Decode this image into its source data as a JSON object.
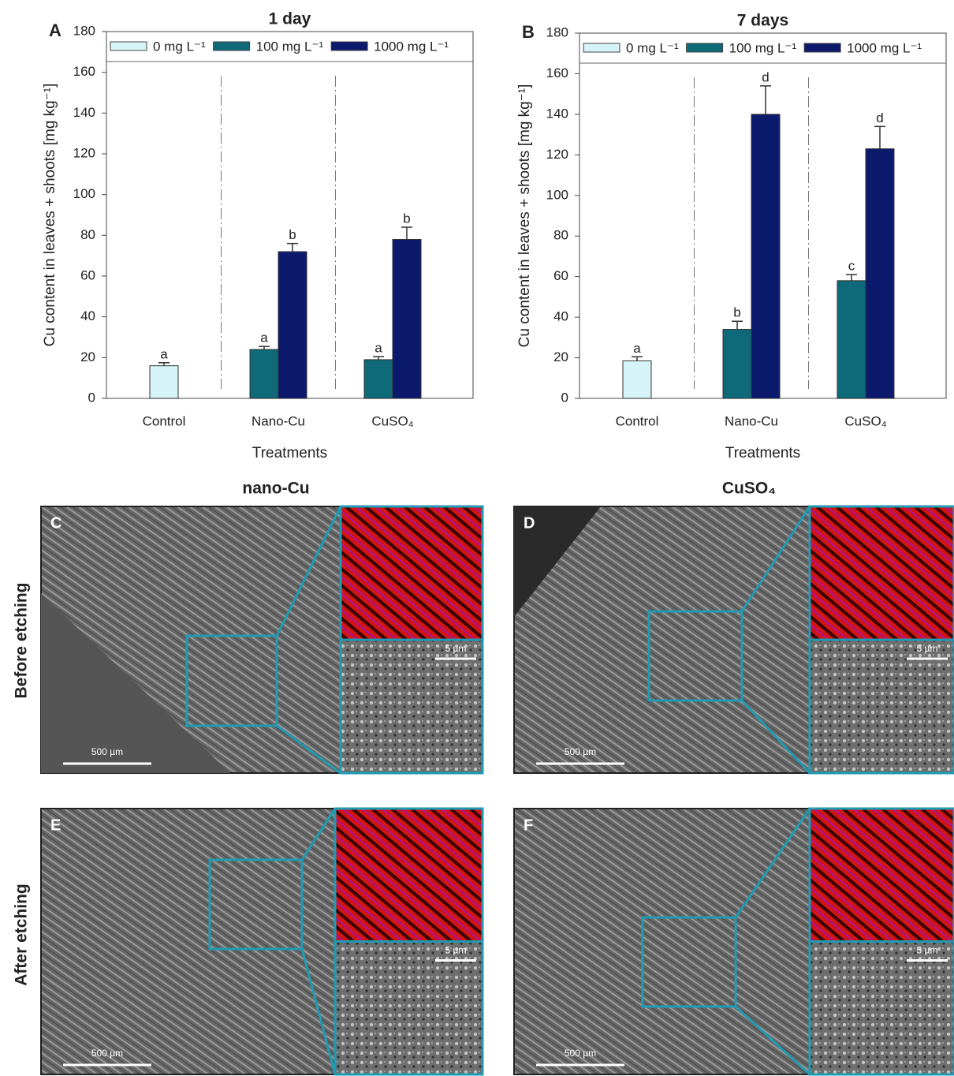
{
  "chart_data": [
    {
      "type": "bar",
      "panel": "A",
      "title": "1 day",
      "y_label": "Cu content in leaves + shoots [mg kg⁻¹]",
      "x_label": "Treatments",
      "categories": [
        "Control",
        "Nano-Cu",
        "CuSO₄"
      ],
      "series": [
        {
          "name": "0 mg L⁻¹",
          "color": "#d6f3f8",
          "values": [
            16,
            null,
            null
          ],
          "errors": [
            1.5,
            null,
            null
          ],
          "significance": [
            "a",
            null,
            null
          ]
        },
        {
          "name": "100 mg L⁻¹",
          "color": "#0e6a79",
          "values": [
            null,
            24,
            19
          ],
          "errors": [
            null,
            1.5,
            1.5
          ],
          "significance": [
            null,
            "a",
            "a"
          ]
        },
        {
          "name": "1000 mg L⁻¹",
          "color": "#0b1a6c",
          "values": [
            null,
            72,
            78
          ],
          "errors": [
            null,
            4,
            6
          ],
          "significance": [
            null,
            "b",
            "b"
          ]
        }
      ],
      "ylim": [
        0,
        180
      ],
      "yticks": [
        0,
        20,
        40,
        60,
        80,
        100,
        120,
        140,
        160,
        180
      ],
      "legend": "top"
    },
    {
      "type": "bar",
      "panel": "B",
      "title": "7 days",
      "y_label": "Cu content in leaves + shoots [mg kg⁻¹]",
      "x_label": "Treatments",
      "categories": [
        "Control",
        "Nano-Cu",
        "CuSO₄"
      ],
      "series": [
        {
          "name": "0 mg L⁻¹",
          "color": "#d6f3f8",
          "values": [
            18.5,
            null,
            null
          ],
          "errors": [
            2,
            null,
            null
          ],
          "significance": [
            "a",
            null,
            null
          ]
        },
        {
          "name": "100 mg L⁻¹",
          "color": "#0e6a79",
          "values": [
            null,
            34,
            58
          ],
          "errors": [
            null,
            4,
            3
          ],
          "significance": [
            null,
            "b",
            "c"
          ]
        },
        {
          "name": "1000 mg L⁻¹",
          "color": "#0b1a6c",
          "values": [
            null,
            140,
            123
          ],
          "errors": [
            null,
            14,
            11
          ],
          "significance": [
            null,
            "d",
            "d"
          ]
        }
      ],
      "ylim": [
        0,
        180
      ],
      "yticks": [
        0,
        20,
        40,
        60,
        80,
        100,
        120,
        140,
        160,
        180
      ],
      "legend": "top"
    }
  ],
  "micrographs": {
    "column_titles": [
      "nano-Cu",
      "CuSO₄"
    ],
    "row_titles": [
      "Before etching",
      "After etching"
    ],
    "panels": [
      {
        "label": "C",
        "scale_main": "500 µm",
        "scale_inset": "5 µm"
      },
      {
        "label": "D",
        "scale_main": "500 µm",
        "scale_inset": "5 µm"
      },
      {
        "label": "E",
        "scale_main": "500 µm",
        "scale_inset": "5 µm"
      },
      {
        "label": "F",
        "scale_main": "500 µm",
        "scale_inset": "5 µm"
      }
    ]
  }
}
